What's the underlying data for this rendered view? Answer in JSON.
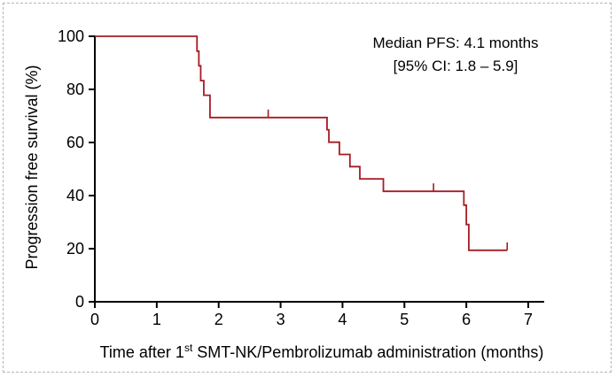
{
  "chart_data": {
    "type": "line",
    "subtype": "kaplan-meier step",
    "xlabel_parts": [
      "Time after 1",
      "st",
      " SMT-NK/Pembrolizumab administration (months)"
    ],
    "ylabel": "Progression free survival (%)",
    "annotation": [
      "Median PFS: 4.1 months",
      "[95% CI: 1.8 – 5.9]"
    ],
    "xlim": [
      0,
      7
    ],
    "ylim": [
      0,
      100
    ],
    "xticks": [
      0,
      1,
      2,
      3,
      4,
      5,
      6,
      7
    ],
    "yticks": [
      0,
      20,
      40,
      60,
      80,
      100
    ],
    "grid": false,
    "series": [
      {
        "color": "#a51c24",
        "steps": [
          {
            "x": 0,
            "y": 100
          },
          {
            "x": 1.65,
            "y": 94.4
          },
          {
            "x": 1.68,
            "y": 88.9
          },
          {
            "x": 1.71,
            "y": 83.3
          },
          {
            "x": 1.76,
            "y": 77.8
          },
          {
            "x": 1.86,
            "y": 69.4
          },
          {
            "x": 3.75,
            "y": 64.8
          },
          {
            "x": 3.78,
            "y": 60.1
          },
          {
            "x": 3.95,
            "y": 55.5
          },
          {
            "x": 4.12,
            "y": 50.9
          },
          {
            "x": 4.28,
            "y": 46.3
          },
          {
            "x": 4.66,
            "y": 41.6
          },
          {
            "x": 5.96,
            "y": 36.4
          },
          {
            "x": 6.0,
            "y": 29.1
          },
          {
            "x": 6.04,
            "y": 19.4
          },
          {
            "x": 6.66,
            "y": 19.4
          }
        ],
        "censored": [
          {
            "x": 2.8,
            "y": 69.4
          },
          {
            "x": 5.47,
            "y": 41.6
          },
          {
            "x": 6.66,
            "y": 19.4
          }
        ]
      }
    ]
  }
}
